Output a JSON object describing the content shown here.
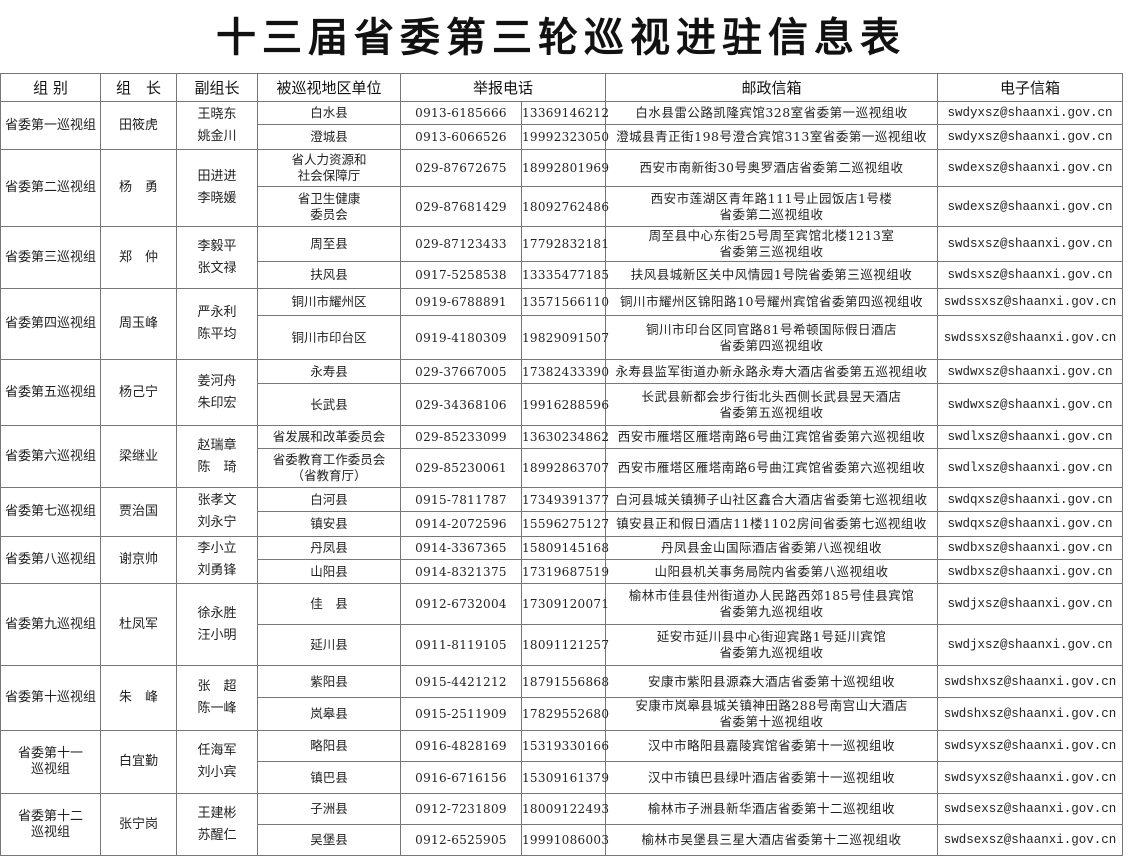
{
  "title": "十三届省委第三轮巡视进驻信息表",
  "headers": [
    "组 别",
    "组　长",
    "副组长",
    "被巡视地区单位",
    "举报电话",
    "邮政信箱",
    "电子信箱"
  ],
  "groups": [
    {
      "name": "省委第一巡视组",
      "leader": "田筱虎",
      "deputies": "王晓东\n姚金川",
      "units": [
        {
          "unit": "白水县",
          "phone": "0913-6185666",
          "mobile": "13369146212",
          "address": "白水县雷公路凯隆宾馆328室省委第一巡视组收",
          "email": "swdyxsz@shaanxi.gov.cn"
        },
        {
          "unit": "澄城县",
          "phone": "0913-6066526",
          "mobile": "19992323050",
          "address": "澄城县青正街198号澄合宾馆313室省委第一巡视组收",
          "email": "swdyxsz@shaanxi.gov.cn"
        }
      ]
    },
    {
      "name": "省委第二巡视组",
      "leader": "杨　勇",
      "deputies": "田进进\n李晓媛",
      "units": [
        {
          "unit": "省人力资源和\n社会保障厅",
          "phone": "029-87672675",
          "mobile": "18992801969",
          "address": "西安市南新街30号奥罗酒店省委第二巡视组收",
          "email": "swdexsz@shaanxi.gov.cn"
        },
        {
          "unit": "省卫生健康\n委员会",
          "phone": "029-87681429",
          "mobile": "18092762486",
          "address": "西安市莲湖区青年路111号止园饭店1号楼\n省委第二巡视组收",
          "email": "swdexsz@shaanxi.gov.cn"
        }
      ]
    },
    {
      "name": "省委第三巡视组",
      "leader": "郑　仲",
      "deputies": "李毅平\n张文禄",
      "units": [
        {
          "unit": "周至县",
          "phone": "029-87123433",
          "mobile": "17792832181",
          "address": "周至县中心东街25号周至宾馆北楼1213室\n省委第三巡视组收",
          "email": "swdsxsz@shaanxi.gov.cn"
        },
        {
          "unit": "扶风县",
          "phone": "0917-5258538",
          "mobile": "13335477185",
          "address": "扶风县城新区关中风情园1号院省委第三巡视组收",
          "email": "swdsxsz@shaanxi.gov.cn"
        }
      ]
    },
    {
      "name": "省委第四巡视组",
      "leader": "周玉峰",
      "deputies": "严永利\n陈平均",
      "units": [
        {
          "unit": "铜川市耀州区",
          "phone": "0919-6788891",
          "mobile": "13571566110",
          "address": "铜川市耀州区锦阳路10号耀州宾馆省委第四巡视组收",
          "email": "swdssxsz@shaanxi.gov.cn"
        },
        {
          "unit": "铜川市印台区",
          "phone": "0919-4180309",
          "mobile": "19829091507",
          "address": "铜川市印台区同官路81号希顿国际假日酒店\n省委第四巡视组收",
          "email": "swdssxsz@shaanxi.gov.cn"
        }
      ]
    },
    {
      "name": "省委第五巡视组",
      "leader": "杨己宁",
      "deputies": "姜河舟\n朱印宏",
      "units": [
        {
          "unit": "永寿县",
          "phone": "029-37667005",
          "mobile": "17382433390",
          "address": "永寿县监军街道办新永路永寿大酒店省委第五巡视组收",
          "email": "swdwxsz@shaanxi.gov.cn"
        },
        {
          "unit": "长武县",
          "phone": "029-34368106",
          "mobile": "19916288596",
          "address": "长武县新都会步行街北头西侧长武县昱天酒店\n省委第五巡视组收",
          "email": "swdwxsz@shaanxi.gov.cn"
        }
      ]
    },
    {
      "name": "省委第六巡视组",
      "leader": "梁继业",
      "deputies": "赵瑞章\n陈　琦",
      "units": [
        {
          "unit": "省发展和改革委员会",
          "phone": "029-85233099",
          "mobile": "13630234862",
          "address": "西安市雁塔区雁塔南路6号曲江宾馆省委第六巡视组收",
          "email": "swdlxsz@shaanxi.gov.cn"
        },
        {
          "unit": "省委教育工作委员会\n（省教育厅）",
          "phone": "029-85230061",
          "mobile": "18992863707",
          "address": "西安市雁塔区雁塔南路6号曲江宾馆省委第六巡视组收",
          "email": "swdlxsz@shaanxi.gov.cn"
        }
      ]
    },
    {
      "name": "省委第七巡视组",
      "leader": "贾治国",
      "deputies": "张孝文\n刘永宁",
      "units": [
        {
          "unit": "白河县",
          "phone": "0915-7811787",
          "mobile": "17349391377",
          "address": "白河县城关镇狮子山社区鑫合大酒店省委第七巡视组收",
          "email": "swdqxsz@shaanxi.gov.cn"
        },
        {
          "unit": "镇安县",
          "phone": "0914-2072596",
          "mobile": "15596275127",
          "address": "镇安县正和假日酒店11楼1102房间省委第七巡视组收",
          "email": "swdqxsz@shaanxi.gov.cn"
        }
      ]
    },
    {
      "name": "省委第八巡视组",
      "leader": "谢京帅",
      "deputies": "李小立\n刘勇锋",
      "units": [
        {
          "unit": "丹凤县",
          "phone": "0914-3367365",
          "mobile": "15809145168",
          "address": "丹凤县金山国际酒店省委第八巡视组收",
          "email": "swdbxsz@shaanxi.gov.cn"
        },
        {
          "unit": "山阳县",
          "phone": "0914-8321375",
          "mobile": "17319687519",
          "address": "山阳县机关事务局院内省委第八巡视组收",
          "email": "swdbxsz@shaanxi.gov.cn"
        }
      ]
    },
    {
      "name": "省委第九巡视组",
      "leader": "杜凤军",
      "deputies": "徐永胜\n汪小明",
      "units": [
        {
          "unit": "佳　县",
          "phone": "0912-6732004",
          "mobile": "17309120071",
          "address": "榆林市佳县佳州街道办人民路西郊185号佳县宾馆\n省委第九巡视组收",
          "email": "swdjxsz@shaanxi.gov.cn"
        },
        {
          "unit": "延川县",
          "phone": "0911-8119105",
          "mobile": "18091121257",
          "address": "延安市延川县中心街迎宾路1号延川宾馆\n省委第九巡视组收",
          "email": "swdjxsz@shaanxi.gov.cn"
        }
      ]
    },
    {
      "name": "省委第十巡视组",
      "leader": "朱　峰",
      "deputies": "张　超\n陈一峰",
      "units": [
        {
          "unit": "紫阳县",
          "phone": "0915-4421212",
          "mobile": "18791556868",
          "address": "安康市紫阳县源森大酒店省委第十巡视组收",
          "email": "swdshxsz@shaanxi.gov.cn"
        },
        {
          "unit": "岚皋县",
          "phone": "0915-2511909",
          "mobile": "17829552680",
          "address": "安康市岚皋县城关镇神田路288号南宫山大酒店\n省委第十巡视组收",
          "email": "swdshxsz@shaanxi.gov.cn"
        }
      ]
    },
    {
      "name": "省委第十一\n巡视组",
      "leader": "白宜勤",
      "deputies": "任海军\n刘小宾",
      "units": [
        {
          "unit": "略阳县",
          "phone": "0916-4828169",
          "mobile": "15319330166",
          "address": "汉中市略阳县嘉陵宾馆省委第十一巡视组收",
          "email": "swdsyxsz@shaanxi.gov.cn"
        },
        {
          "unit": "镇巴县",
          "phone": "0916-6716156",
          "mobile": "15309161379",
          "address": "汉中市镇巴县绿叶酒店省委第十一巡视组收",
          "email": "swdsyxsz@shaanxi.gov.cn"
        }
      ]
    },
    {
      "name": "省委第十二\n巡视组",
      "leader": "张宁岗",
      "deputies": "王建彬\n苏醒仁",
      "units": [
        {
          "unit": "子洲县",
          "phone": "0912-7231809",
          "mobile": "18009122493",
          "address": "榆林市子洲县新华酒店省委第十二巡视组收",
          "email": "swdsexsz@shaanxi.gov.cn"
        },
        {
          "unit": "吴堡县",
          "phone": "0912-6525905",
          "mobile": "19991086003",
          "address": "榆林市吴堡县三星大酒店省委第十二巡视组收",
          "email": "swdsexsz@shaanxi.gov.cn"
        }
      ]
    }
  ]
}
